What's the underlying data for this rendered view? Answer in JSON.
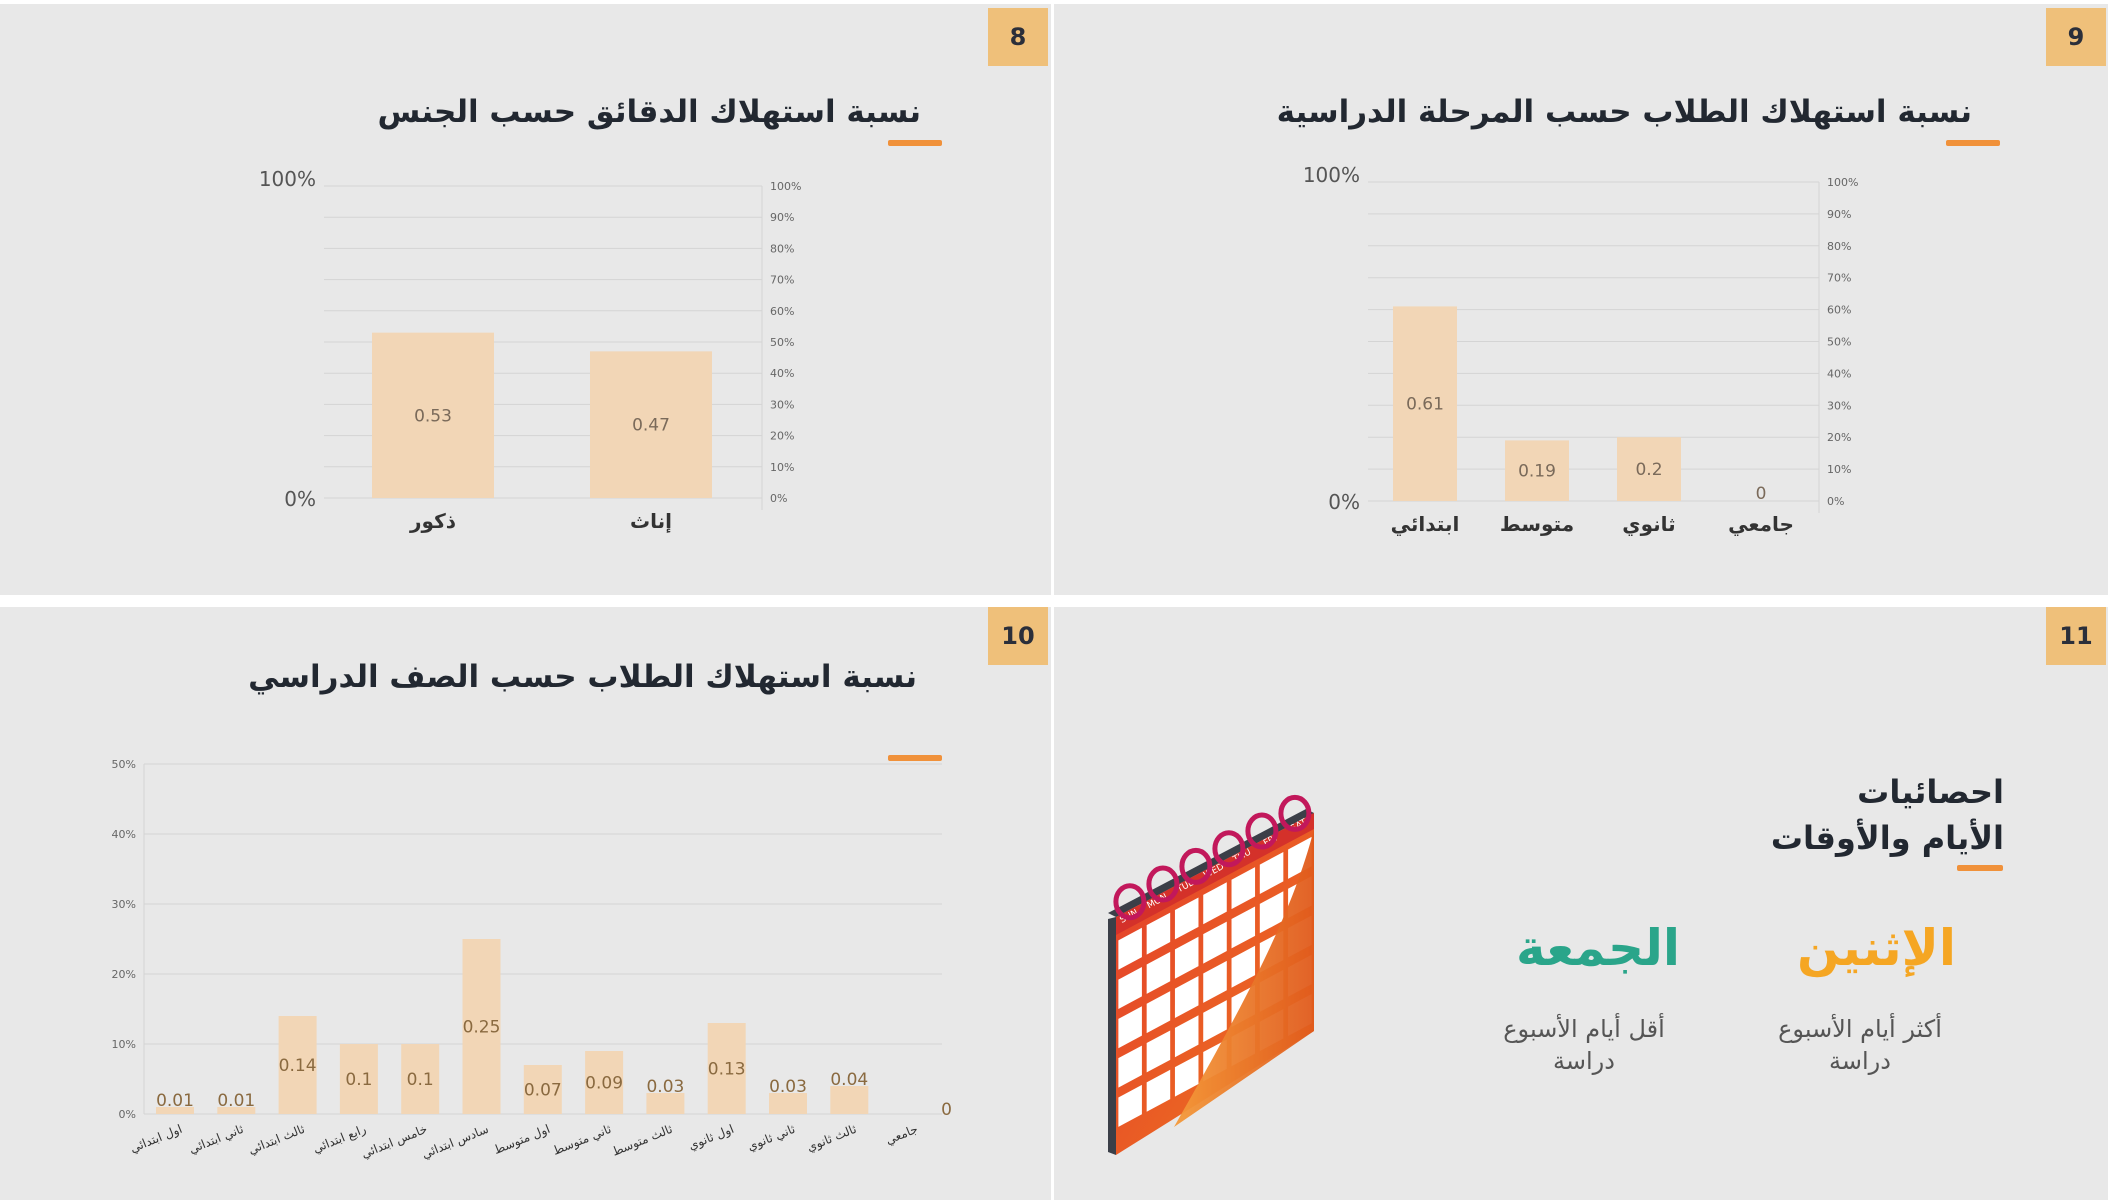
{
  "slides": {
    "s8": {
      "number": "8",
      "title": "نسبة استهلاك الدقائق حسب الجنس"
    },
    "s9": {
      "number": "9",
      "title": "نسبة استهلاك الطلاب حسب المرحلة الدراسية"
    },
    "s10": {
      "number": "10",
      "title": "نسبة استهلاك الطلاب حسب الصف الدراسي"
    },
    "s11": {
      "number": "11",
      "title_line1": "احصائيات",
      "title_line2": "الأيام والأوقات",
      "most_day": "الإثنين",
      "most_desc": "أكثر أيام الأسبوع دراسة",
      "least_day": "الجمعة",
      "least_desc": "أقل أيام الأسبوع دراسة",
      "calendar_days": [
        "SUN",
        "MON",
        "TUE",
        "WED",
        "THU",
        "FRI",
        "SAT"
      ],
      "colors": {
        "most": "#f5a623",
        "least": "#2aa58a"
      }
    }
  },
  "chart_data": [
    {
      "type": "bar",
      "categories": [
        "ذكور",
        "إناث"
      ],
      "values": [
        0.53,
        0.47
      ],
      "value_labels": [
        "0.53",
        "0.47"
      ],
      "ylim": [
        0,
        1
      ],
      "left_ticks": [
        "100%",
        "0%"
      ],
      "right_ticks": [
        "100%",
        "90%",
        "80%",
        "70%",
        "60%",
        "50%",
        "40%",
        "30%",
        "20%",
        "10%",
        "0%"
      ],
      "grid": true
    },
    {
      "type": "bar",
      "categories": [
        "ابتدائي",
        "متوسط",
        "ثانوي",
        "جامعي"
      ],
      "values": [
        0.61,
        0.19,
        0.2,
        0
      ],
      "value_labels": [
        "0.61",
        "0.19",
        "0.2",
        "0"
      ],
      "ylim": [
        0,
        1
      ],
      "left_ticks": [
        "100%",
        "0%"
      ],
      "right_ticks": [
        "100%",
        "90%",
        "80%",
        "70%",
        "60%",
        "50%",
        "40%",
        "30%",
        "20%",
        "10%",
        "0%"
      ],
      "grid": true
    },
    {
      "type": "bar",
      "categories": [
        "اول ابتدائي",
        "ثاني ابتدائي",
        "ثالث ابتدائي",
        "رابع ابتدائي",
        "خامس ابتدائي",
        "سادس ابتدائي",
        "اول متوسط",
        "ثاني متوسط",
        "ثالث متوسط",
        "اول ثانوي",
        "ثاني ثانوي",
        "ثالث ثانوي",
        "جامعي"
      ],
      "values": [
        0.01,
        0.01,
        0.14,
        0.1,
        0.1,
        0.25,
        0.07,
        0.09,
        0.03,
        0.13,
        0.03,
        0.04,
        0
      ],
      "value_labels": [
        "0.01",
        "0.01",
        "0.14",
        "0.1",
        "0.1",
        "0.25",
        "0.07",
        "0.09",
        "0.03",
        "0.13",
        "0.03",
        "0.04",
        "0"
      ],
      "ylim": [
        0,
        0.5
      ],
      "left_ticks": [
        "50%",
        "40%",
        "30%",
        "20%",
        "10%",
        "0%"
      ],
      "grid": true
    }
  ]
}
